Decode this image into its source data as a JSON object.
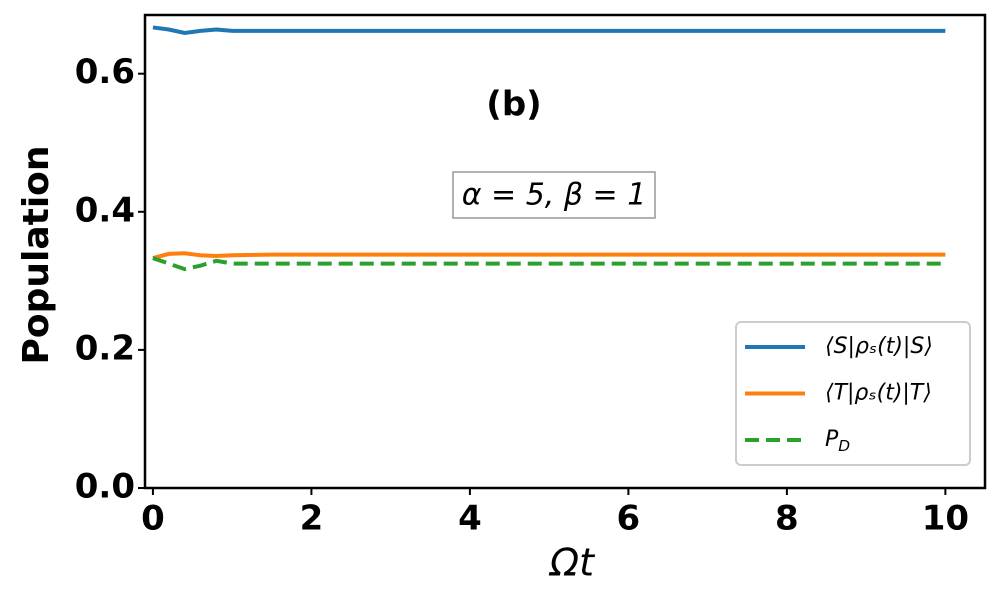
{
  "chart_data": {
    "type": "line",
    "xlabel": "Ωt",
    "ylabel": "Population",
    "annotations": [
      "(b)",
      "α = 5, β = 1"
    ],
    "x": [
      0,
      0.2,
      0.4,
      0.6,
      0.8,
      1,
      1.5,
      2,
      3,
      4,
      5,
      6,
      7,
      8,
      9,
      10
    ],
    "series": [
      {
        "name": "⟨S|ρₛ(t)|S⟩",
        "color": "#1f77b4",
        "dashed": false,
        "values": [
          0.667,
          0.664,
          0.659,
          0.662,
          0.664,
          0.662,
          0.662,
          0.662,
          0.662,
          0.662,
          0.662,
          0.662,
          0.662,
          0.662,
          0.662,
          0.662
        ]
      },
      {
        "name": "⟨T|ρₛ(t)|T⟩",
        "color": "#ff7f0e",
        "dashed": false,
        "values": [
          0.333,
          0.339,
          0.34,
          0.337,
          0.336,
          0.337,
          0.338,
          0.338,
          0.338,
          0.338,
          0.338,
          0.338,
          0.338,
          0.338,
          0.338,
          0.338
        ]
      },
      {
        "name": "P_D",
        "color": "#2ca02c",
        "dashed": true,
        "values": [
          0.333,
          0.325,
          0.317,
          0.322,
          0.329,
          0.325,
          0.325,
          0.325,
          0.325,
          0.325,
          0.325,
          0.325,
          0.325,
          0.325,
          0.325,
          0.325
        ]
      }
    ],
    "xlim": [
      -0.1,
      10.5
    ],
    "ylim": [
      0,
      0.685
    ],
    "xticks": [
      0,
      2,
      4,
      6,
      8,
      10
    ],
    "yticks": [
      {
        "value": 0,
        "label": "0.0"
      },
      0.2,
      0.4,
      0.6
    ],
    "legend": "lower right",
    "grid": false
  }
}
